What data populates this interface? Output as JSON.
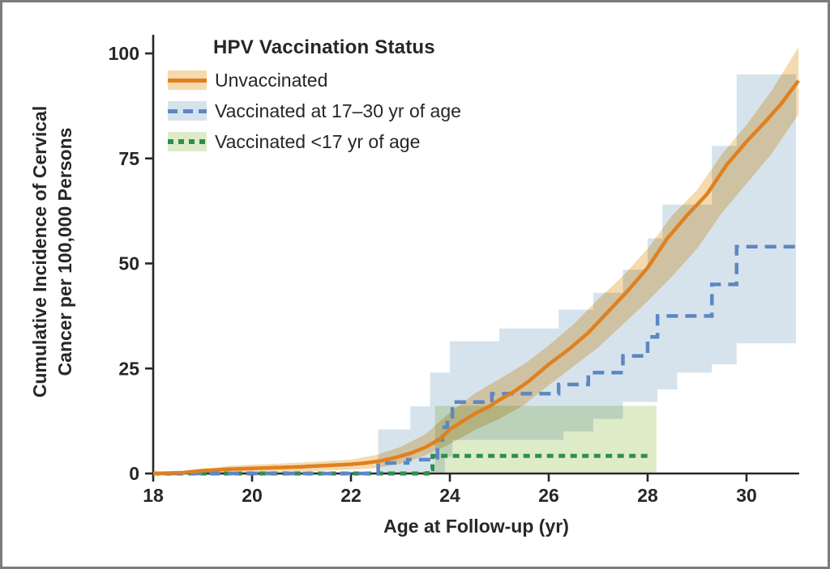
{
  "figure": {
    "legend": {
      "title": "HPV Vaccination Status",
      "items": [
        {
          "label": "Unvaccinated"
        },
        {
          "label": "Vaccinated at 17–30 yr of age"
        },
        {
          "label": "Vaccinated <17 yr of age"
        }
      ]
    },
    "x_axis_title": "Age at Follow-up (yr)",
    "y_axis_title_line1": "Cumulative Incidence of Cervical",
    "y_axis_title_line2": "Cancer per 100,000 Persons"
  },
  "chart_data": {
    "type": "line",
    "title": "HPV Vaccination Status",
    "xlabel": "Age at Follow-up (yr)",
    "ylabel": "Cumulative Incidence of Cervical Cancer per 100,000 Persons",
    "xlim": [
      18,
      31.1
    ],
    "ylim": [
      0,
      104
    ],
    "xticks": [
      18,
      20,
      22,
      24,
      26,
      28,
      30
    ],
    "yticks": [
      0,
      25,
      50,
      75,
      100
    ],
    "grid": false,
    "legend_position": "top-left-inside",
    "axis_color": "#2a2526",
    "series": [
      {
        "name": "Unvaccinated",
        "color": "#e0801f",
        "band_color": "#f5daaf",
        "dash": "solid",
        "step": false,
        "width": 4.5,
        "x_end": 31.05,
        "band_x_end": 31.05,
        "points": [
          [
            18,
            0
          ],
          [
            18.6,
            0.2
          ],
          [
            19,
            0.7
          ],
          [
            19.5,
            1
          ],
          [
            20,
            1.2
          ],
          [
            20.5,
            1.4
          ],
          [
            21,
            1.6
          ],
          [
            21.5,
            1.9
          ],
          [
            22,
            2.2
          ],
          [
            22.3,
            2.5
          ],
          [
            22.6,
            3
          ],
          [
            22.9,
            3.8
          ],
          [
            23.2,
            4.8
          ],
          [
            23.5,
            6.2
          ],
          [
            23.8,
            8.2
          ],
          [
            24,
            10.5
          ],
          [
            24.2,
            12
          ],
          [
            24.5,
            14.2
          ],
          [
            24.8,
            16
          ],
          [
            25,
            17.5
          ],
          [
            25.3,
            19.5
          ],
          [
            25.6,
            22
          ],
          [
            26,
            26
          ],
          [
            26.4,
            29.5
          ],
          [
            26.8,
            33.5
          ],
          [
            27.2,
            38.5
          ],
          [
            27.6,
            43.5
          ],
          [
            28,
            49
          ],
          [
            28.4,
            56
          ],
          [
            28.8,
            61.5
          ],
          [
            29.2,
            66.5
          ],
          [
            29.6,
            73.5
          ],
          [
            30,
            79
          ],
          [
            30.4,
            84
          ],
          [
            30.7,
            88
          ],
          [
            31.05,
            93.5
          ]
        ],
        "band_upper": [
          [
            18.75,
            0.4
          ],
          [
            19.5,
            1.8
          ],
          [
            20,
            2.1
          ],
          [
            21,
            2.6
          ],
          [
            22,
            3.3
          ],
          [
            22.5,
            4.4
          ],
          [
            23,
            6.3
          ],
          [
            23.5,
            9.3
          ],
          [
            24,
            14.5
          ],
          [
            24.5,
            19
          ],
          [
            25,
            22.5
          ],
          [
            25.5,
            26
          ],
          [
            26,
            30.5
          ],
          [
            26.5,
            35.5
          ],
          [
            27,
            41.5
          ],
          [
            27.5,
            47
          ],
          [
            28,
            53.5
          ],
          [
            28.5,
            61.5
          ],
          [
            29,
            67.5
          ],
          [
            29.5,
            76
          ],
          [
            30,
            83
          ],
          [
            30.5,
            91
          ],
          [
            31.05,
            101.5
          ]
        ],
        "band_lower": [
          [
            18.75,
            0
          ],
          [
            20,
            0.3
          ],
          [
            21,
            0.5
          ],
          [
            22,
            0.9
          ],
          [
            22.5,
            1.3
          ],
          [
            23,
            2.3
          ],
          [
            23.5,
            4.3
          ],
          [
            24,
            7
          ],
          [
            24.5,
            10.3
          ],
          [
            25,
            13
          ],
          [
            25.5,
            16.3
          ],
          [
            26,
            21
          ],
          [
            26.5,
            25.5
          ],
          [
            27,
            30
          ],
          [
            27.5,
            35.5
          ],
          [
            28,
            41
          ],
          [
            28.5,
            47
          ],
          [
            29,
            53.5
          ],
          [
            29.5,
            62
          ],
          [
            30,
            69
          ],
          [
            30.5,
            76
          ],
          [
            31.05,
            85.5
          ]
        ]
      },
      {
        "name": "Vaccinated at 17–30 yr of age",
        "color": "#5c87c4",
        "band_color": "#d7e3ec",
        "dash": "long-dash",
        "step": true,
        "width": 4.5,
        "x_end": 31.05,
        "band_x_end": 31.0,
        "points": [
          [
            18,
            0
          ],
          [
            22.55,
            2.5
          ],
          [
            23.15,
            3.3
          ],
          [
            23.75,
            8
          ],
          [
            23.85,
            11
          ],
          [
            23.95,
            13.5
          ],
          [
            24.05,
            17
          ],
          [
            24.85,
            19
          ],
          [
            26.2,
            21.2
          ],
          [
            26.8,
            24
          ],
          [
            27.5,
            28
          ],
          [
            28,
            32.5
          ],
          [
            28.2,
            37.5
          ],
          [
            29.3,
            45
          ],
          [
            29.8,
            54
          ]
        ],
        "band_upper": [
          [
            22.55,
            10.5
          ],
          [
            23.2,
            16
          ],
          [
            23.6,
            24
          ],
          [
            24,
            31.5
          ],
          [
            25,
            34.5
          ],
          [
            26.2,
            39
          ],
          [
            26.9,
            43
          ],
          [
            27.5,
            48.5
          ],
          [
            28,
            56
          ],
          [
            28.3,
            64
          ],
          [
            29.3,
            78
          ],
          [
            29.8,
            95
          ]
        ],
        "band_lower": [
          [
            22.55,
            0
          ],
          [
            23.9,
            4
          ],
          [
            24.05,
            8
          ],
          [
            26.3,
            10
          ],
          [
            26.9,
            13
          ],
          [
            27.5,
            17
          ],
          [
            28.2,
            20
          ],
          [
            28.6,
            24
          ],
          [
            29.3,
            26
          ],
          [
            29.8,
            31
          ]
        ]
      },
      {
        "name": "Vaccinated <17 yr of age",
        "color": "#2e8f4c",
        "band_color": "#deebc9",
        "dash": "short-dash",
        "step": true,
        "width": 5,
        "x_end": 28.1,
        "band_x_end": 28.18,
        "points": [
          [
            18,
            0
          ],
          [
            23.55,
            1
          ],
          [
            23.65,
            4.2
          ]
        ],
        "band_upper": [
          [
            23.7,
            16.1
          ]
        ],
        "band_lower": [
          [
            23.7,
            0.3
          ]
        ]
      }
    ]
  }
}
